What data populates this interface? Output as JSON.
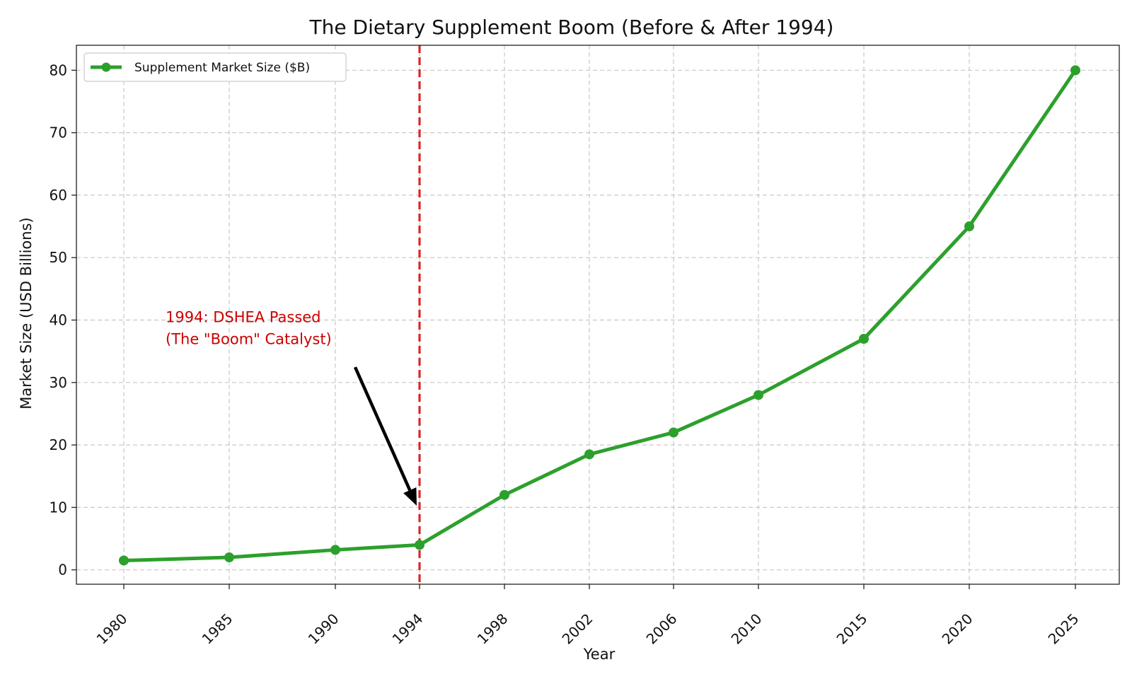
{
  "chart_data": {
    "type": "line",
    "title": "The Dietary Supplement Boom (Before & After 1994)",
    "xlabel": "Year",
    "ylabel": "Market Size (USD Billions)",
    "categories": [
      "1980",
      "1985",
      "1990",
      "1994",
      "1998",
      "2002",
      "2006",
      "2010",
      "2015",
      "2020",
      "2025"
    ],
    "series": [
      {
        "name": "Supplement Market Size ($B)",
        "color": "#2ca02c",
        "values": [
          1.5,
          2.0,
          3.2,
          4.0,
          12.0,
          18.5,
          22.0,
          28.0,
          37.0,
          55.0,
          80.0
        ]
      }
    ],
    "ylim": [
      -2.3,
      84
    ],
    "yticks": [
      0,
      10,
      20,
      30,
      40,
      50,
      60,
      70,
      80
    ],
    "grid": true,
    "legend_position": "top-left",
    "marker_line": {
      "category": "1994",
      "color": "#d62728",
      "style": "dashed"
    },
    "annotation": {
      "lines": [
        "1994: DSHEA Passed",
        "(The \"Boom\" Catalyst)"
      ],
      "color": "#cc0000",
      "text_x": "1982",
      "text_y": 40,
      "arrow_from_y": 32,
      "arrow_to_y": 10.5
    }
  }
}
